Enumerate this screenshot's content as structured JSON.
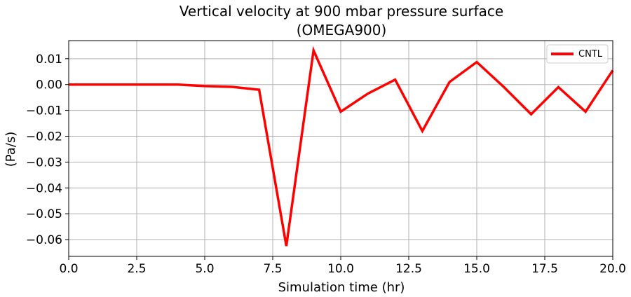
{
  "chart_data": {
    "type": "line",
    "title": "Vertical velocity at 900 mbar pressure surface",
    "subtitle": "(OMEGA900)",
    "xlabel": "Simulation time (hr)",
    "ylabel": "(Pa/s)",
    "xlim": [
      0,
      20
    ],
    "ylim": [
      -0.0665,
      0.017
    ],
    "xticks": [
      0,
      2.5,
      5,
      7.5,
      10,
      12.5,
      15,
      17.5,
      20
    ],
    "xtick_labels": [
      "0.0",
      "2.5",
      "5.0",
      "7.5",
      "10.0",
      "12.5",
      "15.0",
      "17.5",
      "20.0"
    ],
    "yticks": [
      0.01,
      0,
      -0.01,
      -0.02,
      -0.03,
      -0.04,
      -0.05,
      -0.06
    ],
    "ytick_labels": [
      "0.01",
      "0.00",
      "−0.01",
      "−0.02",
      "−0.03",
      "−0.04",
      "−0.05",
      "−0.06"
    ],
    "grid": true,
    "legend_position": "top-right",
    "series": [
      {
        "name": "CNTL",
        "color": "#ff0000",
        "x": [
          0,
          1,
          2,
          3,
          4,
          5,
          6,
          7,
          8,
          9,
          10,
          11,
          12,
          13,
          14,
          15,
          16,
          17,
          18,
          19,
          20
        ],
        "y": [
          0.0,
          0.0,
          0.0,
          0.0,
          0.0,
          -0.0006,
          -0.0009,
          -0.002,
          -0.0625,
          0.0132,
          -0.0105,
          -0.0035,
          0.0019,
          -0.018,
          0.001,
          0.0087,
          -0.001,
          -0.0115,
          -0.001,
          -0.0105,
          0.0055
        ]
      }
    ]
  }
}
